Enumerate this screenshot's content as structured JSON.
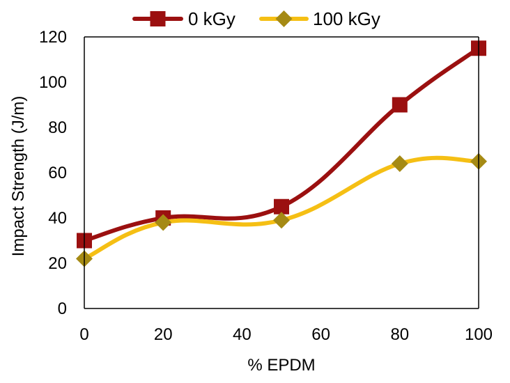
{
  "chart_data": {
    "type": "line",
    "title": "",
    "xlabel": "% EPDM",
    "ylabel": "Impact Strength (J/m)",
    "xlim": [
      0,
      100
    ],
    "ylim": [
      0,
      120
    ],
    "x_ticks": [
      "0",
      "20",
      "40",
      "60",
      "80",
      "100"
    ],
    "y_ticks": [
      "0",
      "20",
      "40",
      "60",
      "80",
      "100",
      "120"
    ],
    "grid": false,
    "legend_position": "top",
    "smooth": true,
    "series": [
      {
        "name": "0 kGy",
        "color": "#9b1010",
        "marker": "square",
        "x": [
          0,
          20,
          50,
          80,
          100
        ],
        "y": [
          30,
          40,
          45,
          90,
          115
        ]
      },
      {
        "name": "100 kGy",
        "color": "#f5bf14",
        "marker": "diamond",
        "marker_color": "#a58a14",
        "x": [
          0,
          20,
          50,
          80,
          100
        ],
        "y": [
          22,
          38,
          39,
          64,
          65
        ]
      }
    ]
  }
}
